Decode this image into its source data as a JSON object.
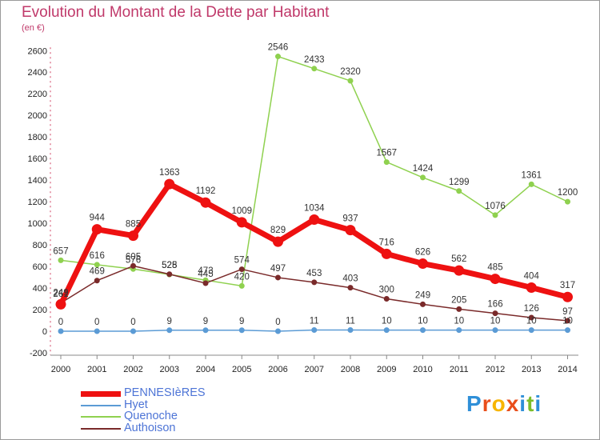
{
  "title": "Evolution du Montant de la Dette par Habitant",
  "subtitle": "(en €)",
  "brand": {
    "letters": [
      "P",
      "r",
      "o",
      "x",
      "i",
      "t",
      "i"
    ],
    "colors": [
      "#2f8fd8",
      "#e94e1b",
      "#f7b500",
      "#e94e1b",
      "#2f8fd8",
      "#7cbd2a",
      "#2f8fd8"
    ]
  },
  "chart_data": {
    "type": "line",
    "x": [
      "2000",
      "2001",
      "2002",
      "2003",
      "2004",
      "2005",
      "2006",
      "2007",
      "2008",
      "2009",
      "2010",
      "2011",
      "2012",
      "2013",
      "2014"
    ],
    "ylim": [
      -200,
      2600
    ],
    "yticks": [
      -200,
      0,
      200,
      400,
      600,
      800,
      1000,
      1200,
      1400,
      1600,
      1800,
      2000,
      2200,
      2400,
      2600
    ],
    "grid": false,
    "legend_position": "bottom-left",
    "series": [
      {
        "name": "PENNESIèRES",
        "color": "#ee1111",
        "values": [
          249,
          944,
          885,
          1363,
          1192,
          1009,
          829,
          1034,
          937,
          716,
          626,
          562,
          485,
          404,
          317
        ]
      },
      {
        "name": "Hyet",
        "color": "#5b9bd5",
        "values": [
          0,
          0,
          0,
          9,
          9,
          9,
          0,
          11,
          11,
          10,
          10,
          10,
          10,
          10,
          10
        ]
      },
      {
        "name": "Quenoche",
        "color": "#8fd14f",
        "values": [
          657,
          616,
          576,
          525,
          473,
          420,
          2546,
          2433,
          2320,
          1567,
          1424,
          1299,
          1076,
          1361,
          1200
        ]
      },
      {
        "name": "Authoison",
        "color": "#7a2a2a",
        "values": [
          261,
          469,
          605,
          528,
          445,
          574,
          497,
          453,
          403,
          300,
          249,
          205,
          166,
          126,
          97
        ]
      }
    ]
  }
}
